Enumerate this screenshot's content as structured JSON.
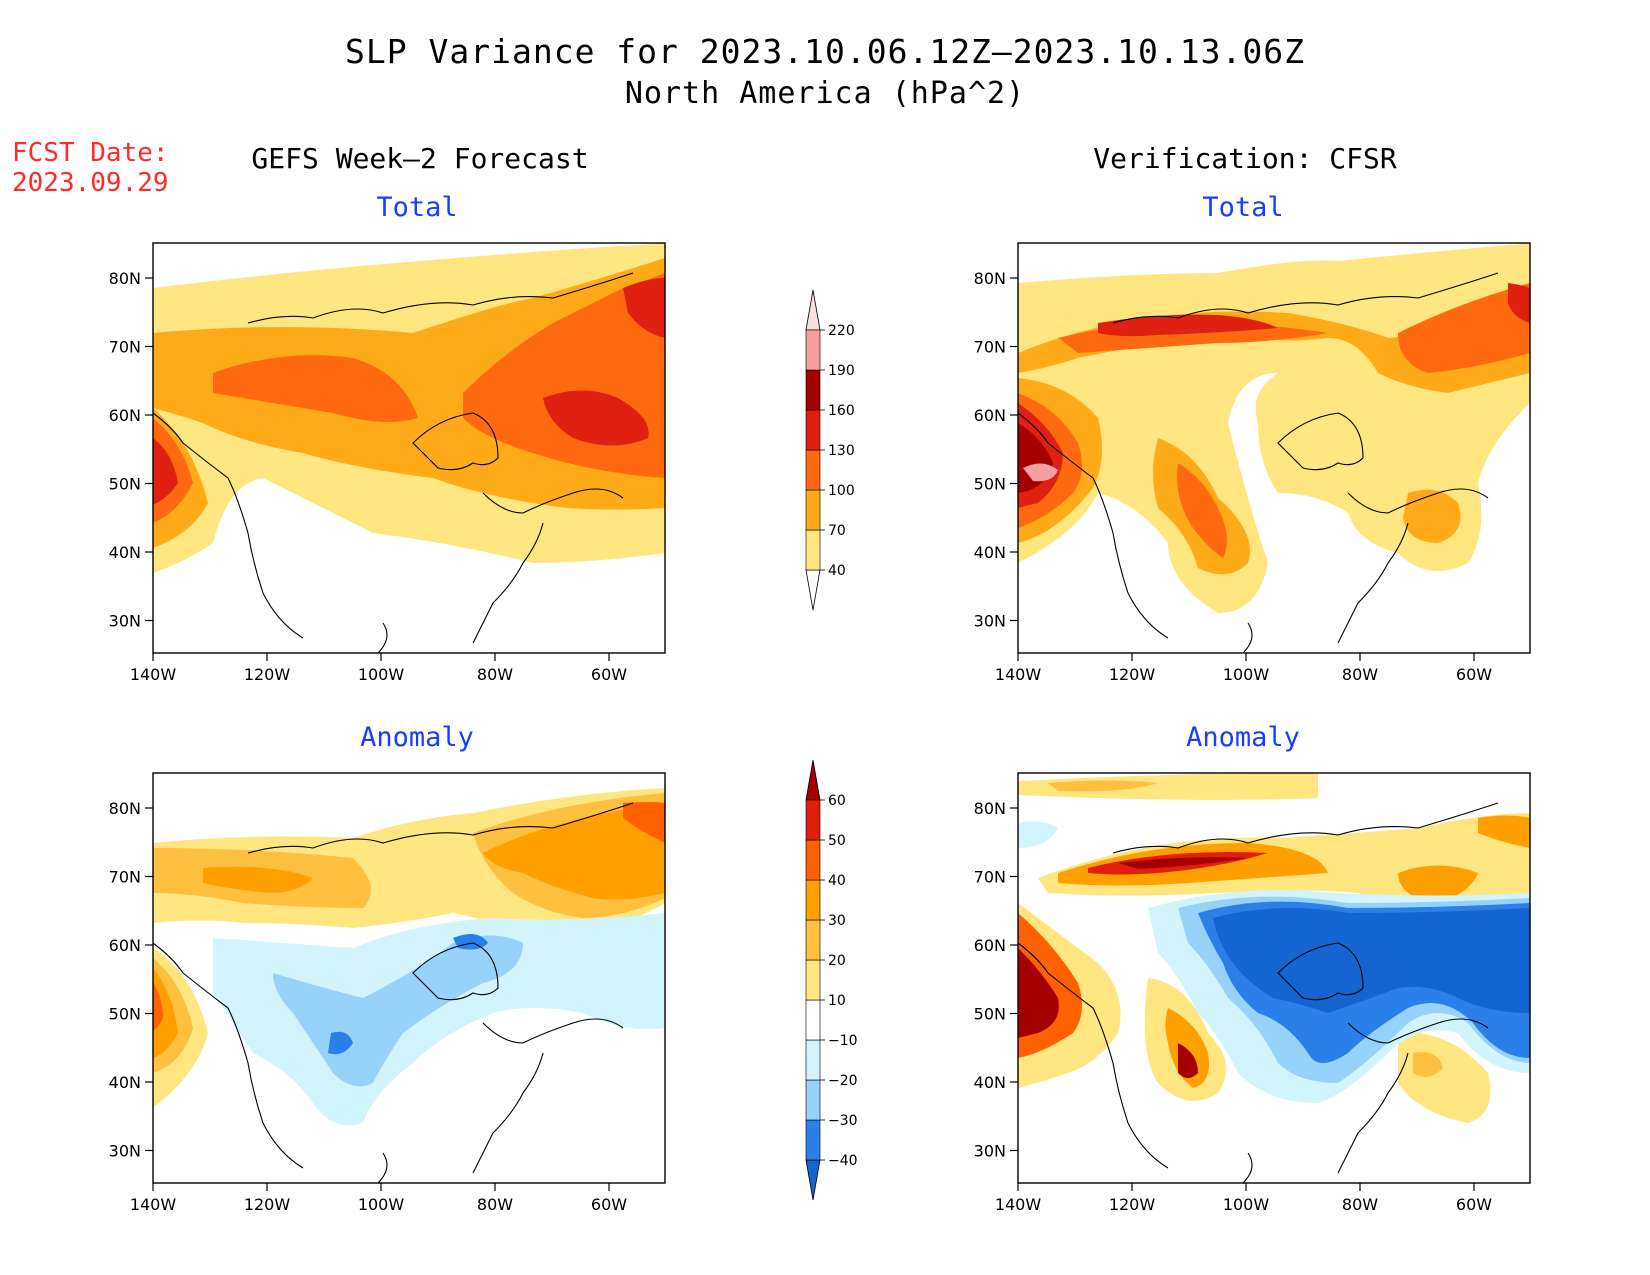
{
  "header": {
    "title": "SLP Variance for 2023.10.06.12Z–2023.10.13.06Z",
    "subtitle": "North America (hPa^2)",
    "fcst_label": "FCST Date:",
    "fcst_date": "2023.09.29",
    "left_column": "GEFS Week–2 Forecast",
    "right_column": "Verification: CFSR"
  },
  "axes": {
    "lat_ticks": [
      "80N",
      "70N",
      "60N",
      "50N",
      "40N",
      "30N"
    ],
    "lon_ticks": [
      "140W",
      "120W",
      "100W",
      "80W",
      "60W"
    ]
  },
  "panels": [
    {
      "title": "Total",
      "field": "forecast_total"
    },
    {
      "title": "Total",
      "field": "verification_total"
    },
    {
      "title": "Anomaly",
      "field": "forecast_anomaly"
    },
    {
      "title": "Anomaly",
      "field": "verification_anomaly"
    }
  ],
  "chart_data": [
    {
      "type": "heatmap",
      "title": "Total",
      "levels": [
        "40",
        "70",
        "100",
        "130",
        "160",
        "190",
        "220"
      ],
      "colors": [
        "#ffffff",
        "#ffe680",
        "#ffab19",
        "#ff6a10",
        "#e02010",
        "#a50000",
        "#f4a0a0",
        "#fce0e0"
      ]
    },
    {
      "type": "heatmap",
      "title": "Anomaly",
      "levels": [
        "−40",
        "−30",
        "−20",
        "−10",
        "10",
        "20",
        "30",
        "40",
        "50",
        "60"
      ],
      "colors": [
        "#1464d2",
        "#2a80e8",
        "#96d2fa",
        "#d2f4fc",
        "#ffffff",
        "#ffe680",
        "#ffc040",
        "#ffa000",
        "#ff6000",
        "#e11e0a",
        "#a50000"
      ]
    }
  ],
  "colors": {
    "white": "#ffffff",
    "t40": "#ffe680",
    "t70": "#ffab19",
    "t100": "#ff6a10",
    "t130": "#e02010",
    "t160": "#a50000",
    "t190": "#f4a0a0",
    "neg10": "#d2f4fc",
    "neg20": "#96d2fa",
    "neg30": "#2a80e8",
    "neg40": "#1464d2",
    "pos10": "#ffe680",
    "pos20": "#ffc040",
    "pos30": "#ffa000",
    "pos40": "#ff6000",
    "pos50": "#e11e0a",
    "pos60": "#a50000"
  }
}
